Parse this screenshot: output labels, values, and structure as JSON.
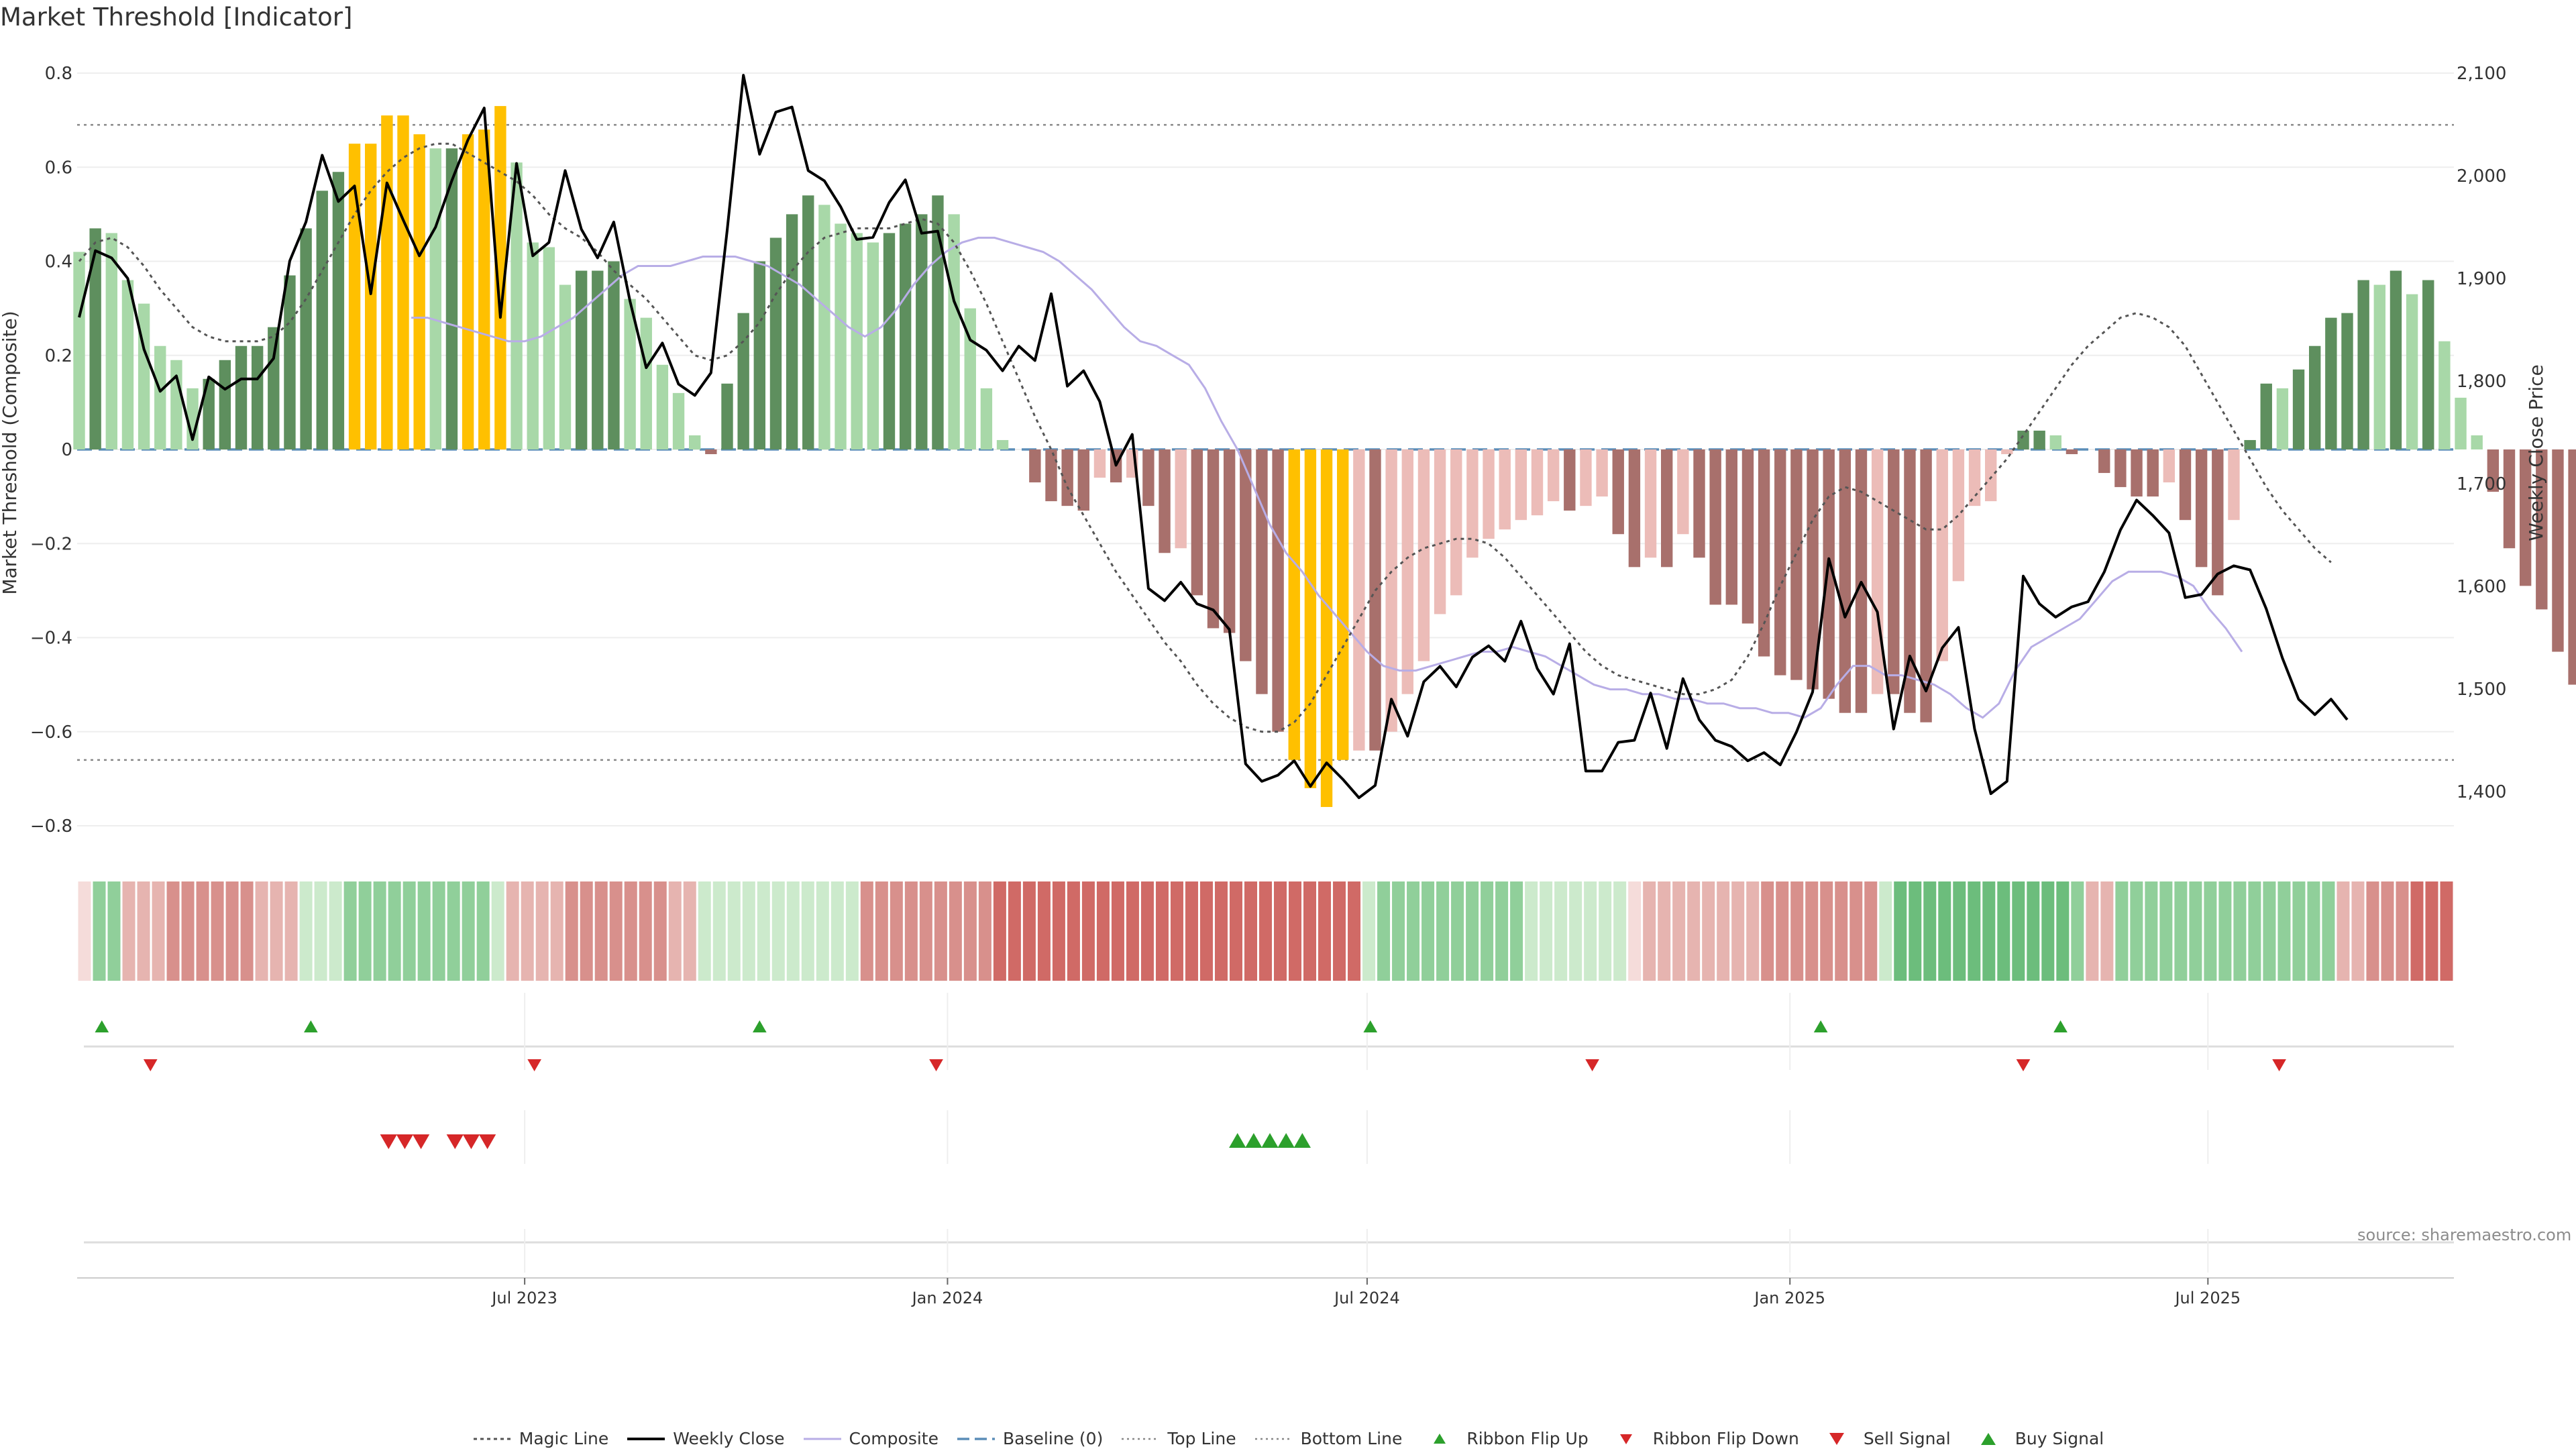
{
  "title": "Market Threshold [Indicator]",
  "source_label": "source: sharemaestro.com",
  "colors": {
    "strong_up": "#5e8f5e",
    "weak_up": "#a8d8a8",
    "strong_down": "#a8706c",
    "weak_down": "#ecbcb8",
    "extreme": "#ffc000",
    "composite_line": "#b8ade6",
    "baseline": "#5b8db8",
    "ribbon_flip_up": "#2ca02c",
    "ribbon_flip_down": "#d62728",
    "sell_signal": "#d62728",
    "buy_signal": "#2ca02c"
  },
  "legend": [
    {
      "key": "magic",
      "label": "Magic Line"
    },
    {
      "key": "close",
      "label": "Weekly Close"
    },
    {
      "key": "composite",
      "label": "Composite"
    },
    {
      "key": "baseline",
      "label": "Baseline (0)"
    },
    {
      "key": "top",
      "label": "Top Line"
    },
    {
      "key": "bottom",
      "label": "Bottom Line"
    },
    {
      "key": "flipup",
      "label": "Ribbon Flip Up"
    },
    {
      "key": "flipdown",
      "label": "Ribbon Flip Down"
    },
    {
      "key": "sell",
      "label": "Sell Signal"
    },
    {
      "key": "buy",
      "label": "Buy Signal"
    }
  ],
  "chart_data": {
    "type": "bar",
    "title": "Market Threshold [Indicator]",
    "ylabel": "Market Threshold (Composite)",
    "y2label": "Weekly Close Price",
    "ylim": [
      -0.84,
      0.8
    ],
    "y2lim": [
      1376,
      2106
    ],
    "y_ticks": [
      "0.8",
      "0.6",
      "0.4",
      "0.2",
      "0",
      "−0.2",
      "−0.4",
      "−0.6",
      "−0.8"
    ],
    "y2_ticks": [
      "2,100",
      "2,000",
      "1,900",
      "1,800",
      "1,700",
      "1,600",
      "1,500",
      "1,400"
    ],
    "x_ticks": [
      {
        "label": "Jul 2023",
        "week": 27.5
      },
      {
        "label": "Jan 2024",
        "week": 53.6
      },
      {
        "label": "Jul 2024",
        "week": 79.5
      },
      {
        "label": "Jan 2025",
        "week": 105.6
      },
      {
        "label": "Jul 2025",
        "week": 131.4
      }
    ],
    "grid": true,
    "legend_position": "bottom",
    "top_line": 0.69,
    "bottom_line": -0.66,
    "baseline": 0,
    "series": [
      {
        "name": "Composite",
        "values": [
          0.42,
          0.47,
          0.46,
          0.36,
          0.31,
          0.22,
          0.19,
          0.13,
          0.15,
          0.19,
          0.22,
          0.22,
          0.26,
          0.37,
          0.47,
          0.55,
          0.59,
          0.65,
          0.65,
          0.71,
          0.71,
          0.67,
          0.64,
          0.64,
          0.67,
          0.68,
          0.73,
          0.61,
          0.44,
          0.43,
          0.35,
          0.38,
          0.38,
          0.4,
          0.32,
          0.28,
          0.18,
          0.12,
          0.03,
          -0.01,
          0.14,
          0.29,
          0.4,
          0.45,
          0.5,
          0.54,
          0.52,
          0.48,
          0.46,
          0.44,
          0.46,
          0.48,
          0.5,
          0.54,
          0.5,
          0.3,
          0.13,
          0.02,
          0.0,
          -0.07,
          -0.11,
          -0.12,
          -0.13,
          -0.06,
          -0.07,
          -0.06,
          -0.12,
          -0.22,
          -0.21,
          -0.31,
          -0.38,
          -0.39,
          -0.45,
          -0.52,
          -0.6,
          -0.66,
          -0.72,
          -0.76,
          -0.66,
          -0.64,
          -0.64,
          -0.6,
          -0.52,
          -0.45,
          -0.35,
          -0.31,
          -0.23,
          -0.19,
          -0.17,
          -0.15,
          -0.14,
          -0.11,
          -0.13,
          -0.12,
          -0.1,
          -0.18,
          -0.25,
          -0.23,
          -0.25,
          -0.18,
          -0.23,
          -0.33,
          -0.33,
          -0.37,
          -0.44,
          -0.48,
          -0.49,
          -0.51,
          -0.53,
          -0.56,
          -0.56,
          -0.52,
          -0.52,
          -0.56,
          -0.58,
          -0.45,
          -0.28,
          -0.12,
          -0.11,
          -0.01,
          0.04,
          0.04,
          0.03,
          -0.01,
          0.0,
          -0.05,
          -0.08,
          -0.1,
          -0.1,
          -0.07,
          -0.15,
          -0.25,
          -0.31,
          -0.15,
          0.02,
          0.14,
          0.13,
          0.17,
          0.22,
          0.28,
          0.29,
          0.36,
          0.35,
          0.38,
          0.33,
          0.36,
          0.23,
          0.11,
          0.03,
          -0.09,
          -0.21,
          -0.29,
          -0.34,
          -0.43,
          -0.5
        ]
      },
      {
        "name": "Weekly Close",
        "values": [
          1862,
          1927,
          1920,
          1900,
          1831,
          1790,
          1805,
          1743,
          1804,
          1792,
          1802,
          1802,
          1822,
          1917,
          1955,
          2020,
          1975,
          1990,
          1885,
          1993,
          1957,
          1922,
          1950,
          1995,
          2035,
          2066,
          1862,
          2012,
          1922,
          1935,
          2005,
          1948,
          1920,
          1955,
          1878,
          1813,
          1837,
          1797,
          1786,
          1808,
          1947,
          2098,
          2021,
          2062,
          2067,
          2005,
          1995,
          1970,
          1938,
          1940,
          1974,
          1996,
          1944,
          1946,
          1878,
          1840,
          1830,
          1810,
          1834,
          1820,
          1885,
          1795,
          1810,
          1780,
          1718,
          1748,
          1598,
          1586,
          1604,
          1583,
          1577,
          1558,
          1427,
          1410,
          1416,
          1430,
          1405,
          1428,
          1412,
          1394,
          1406,
          1490,
          1454,
          1507,
          1522,
          1502,
          1531,
          1542,
          1527,
          1566,
          1520,
          1495,
          1544,
          1420,
          1420,
          1448,
          1450,
          1496,
          1442,
          1510,
          1470,
          1450,
          1444,
          1430,
          1438,
          1426,
          1458,
          1497,
          1627,
          1570,
          1604,
          1575,
          1461,
          1532,
          1498,
          1540,
          1560,
          1461,
          1398,
          1410,
          1610,
          1583,
          1570,
          1580,
          1585,
          1614,
          1655,
          1684,
          1669,
          1652,
          1589,
          1592,
          1612,
          1620,
          1616,
          1578,
          1530,
          1490,
          1475,
          1490,
          1470
        ]
      },
      {
        "name": "Magic Line",
        "values": [
          0.4,
          0.44,
          0.45,
          0.43,
          0.39,
          0.34,
          0.3,
          0.26,
          0.24,
          0.23,
          0.23,
          0.23,
          0.24,
          0.27,
          0.32,
          0.38,
          0.44,
          0.5,
          0.55,
          0.59,
          0.62,
          0.64,
          0.65,
          0.65,
          0.63,
          0.61,
          0.59,
          0.57,
          0.54,
          0.5,
          0.47,
          0.45,
          0.42,
          0.38,
          0.35,
          0.32,
          0.28,
          0.24,
          0.2,
          0.19,
          0.2,
          0.23,
          0.27,
          0.33,
          0.38,
          0.42,
          0.45,
          0.46,
          0.47,
          0.47,
          0.47,
          0.48,
          0.49,
          0.48,
          0.44,
          0.38,
          0.31,
          0.23,
          0.15,
          0.07,
          0.0,
          -0.08,
          -0.14,
          -0.2,
          -0.26,
          -0.31,
          -0.36,
          -0.41,
          -0.45,
          -0.5,
          -0.54,
          -0.57,
          -0.59,
          -0.6,
          -0.6,
          -0.58,
          -0.54,
          -0.48,
          -0.42,
          -0.36,
          -0.3,
          -0.26,
          -0.23,
          -0.21,
          -0.2,
          -0.19,
          -0.19,
          -0.2,
          -0.23,
          -0.27,
          -0.31,
          -0.35,
          -0.39,
          -0.43,
          -0.46,
          -0.48,
          -0.49,
          -0.5,
          -0.51,
          -0.52,
          -0.52,
          -0.51,
          -0.49,
          -0.44,
          -0.37,
          -0.29,
          -0.22,
          -0.15,
          -0.1,
          -0.08,
          -0.09,
          -0.11,
          -0.13,
          -0.15,
          -0.17,
          -0.17,
          -0.14,
          -0.1,
          -0.06,
          -0.02,
          0.03,
          0.08,
          0.13,
          0.18,
          0.22,
          0.25,
          0.28,
          0.29,
          0.28,
          0.26,
          0.22,
          0.16,
          0.1,
          0.04,
          -0.02,
          -0.08,
          -0.13,
          -0.17,
          -0.21,
          -0.24
        ]
      },
      {
        "name": "Composite",
        "values": [
          0.28,
          0.28,
          0.27,
          0.26,
          0.25,
          0.24,
          0.23,
          0.23,
          0.24,
          0.26,
          0.28,
          0.31,
          0.34,
          0.37,
          0.39,
          0.39,
          0.39,
          0.4,
          0.41,
          0.41,
          0.41,
          0.4,
          0.39,
          0.37,
          0.35,
          0.32,
          0.29,
          0.26,
          0.24,
          0.26,
          0.3,
          0.35,
          0.39,
          0.42,
          0.44,
          0.45,
          0.45,
          0.44,
          0.43,
          0.42,
          0.4,
          0.37,
          0.34,
          0.3,
          0.26,
          0.23,
          0.22,
          0.2,
          0.18,
          0.13,
          0.06,
          0.0,
          -0.08,
          -0.16,
          -0.22,
          -0.26,
          -0.31,
          -0.35,
          -0.39,
          -0.43,
          -0.46,
          -0.47,
          -0.47,
          -0.46,
          -0.45,
          -0.44,
          -0.43,
          -0.43,
          -0.42,
          -0.43,
          -0.44,
          -0.46,
          -0.48,
          -0.5,
          -0.51,
          -0.51,
          -0.52,
          -0.52,
          -0.53,
          -0.53,
          -0.54,
          -0.54,
          -0.55,
          -0.55,
          -0.56,
          -0.56,
          -0.57,
          -0.55,
          -0.5,
          -0.46,
          -0.46,
          -0.48,
          -0.48,
          -0.49,
          -0.5,
          -0.52,
          -0.55,
          -0.57,
          -0.54,
          -0.47,
          -0.42,
          -0.4,
          -0.38,
          -0.36,
          -0.32,
          -0.28,
          -0.26,
          -0.26,
          -0.26,
          -0.27,
          -0.29,
          -0.34,
          -0.38,
          -0.43
        ]
      }
    ],
    "ribbon": {
      "name": "Ribbon",
      "levels": [
        -1,
        2,
        2,
        -2,
        -2,
        -2,
        -3,
        -3,
        -3,
        -3,
        -3,
        -3,
        -2,
        -2,
        -2,
        1,
        1,
        1,
        2,
        2,
        2,
        2,
        2,
        2,
        2,
        2,
        2,
        2,
        1,
        -2,
        -2,
        -2,
        -2,
        -3,
        -3,
        -3,
        -3,
        -3,
        -3,
        -3,
        -2,
        -2,
        1,
        1,
        1,
        1,
        1,
        1,
        1,
        1,
        1,
        1,
        1,
        -3,
        -3,
        -3,
        -3,
        -3,
        -3,
        -3,
        -3,
        -3,
        -4,
        -4,
        -4,
        -4,
        -4,
        -4,
        -4,
        -4,
        -4,
        -4,
        -4,
        -4,
        -4,
        -4,
        -4,
        -4,
        -4,
        -4,
        -4,
        -4,
        -4,
        -4,
        -4,
        -4,
        -4,
        1,
        2,
        2,
        2,
        2,
        2,
        2,
        2,
        2,
        2,
        2,
        1,
        1,
        1,
        1,
        1,
        1,
        1,
        -1,
        -2,
        -2,
        -2,
        -2,
        -2,
        -2,
        -2,
        -2,
        -3,
        -3,
        -3,
        -3,
        -3,
        -3,
        -3,
        -3,
        1,
        3,
        3,
        3,
        3,
        3,
        3,
        3,
        3,
        3,
        3,
        3,
        3,
        2,
        -2,
        -2,
        2,
        2,
        2,
        2,
        2,
        2,
        2,
        2,
        2,
        2,
        2,
        2,
        2,
        2,
        2,
        -2,
        -2,
        -3,
        -3,
        -3,
        -4,
        -4,
        -4
      ]
    },
    "signals": {
      "ribbon_flip_up_weeks": [
        1.4,
        14.3,
        42.0,
        79.7,
        107.5,
        122.3
      ],
      "ribbon_flip_down_weeks": [
        4.4,
        28.1,
        52.9,
        93.4,
        120.0,
        135.8
      ],
      "sell_signal_weeks": [
        19.1,
        20.1,
        21.1,
        23.2,
        24.2,
        25.2
      ],
      "buy_signal_weeks": [
        71.5,
        72.5,
        73.5,
        74.5,
        75.5
      ]
    }
  }
}
